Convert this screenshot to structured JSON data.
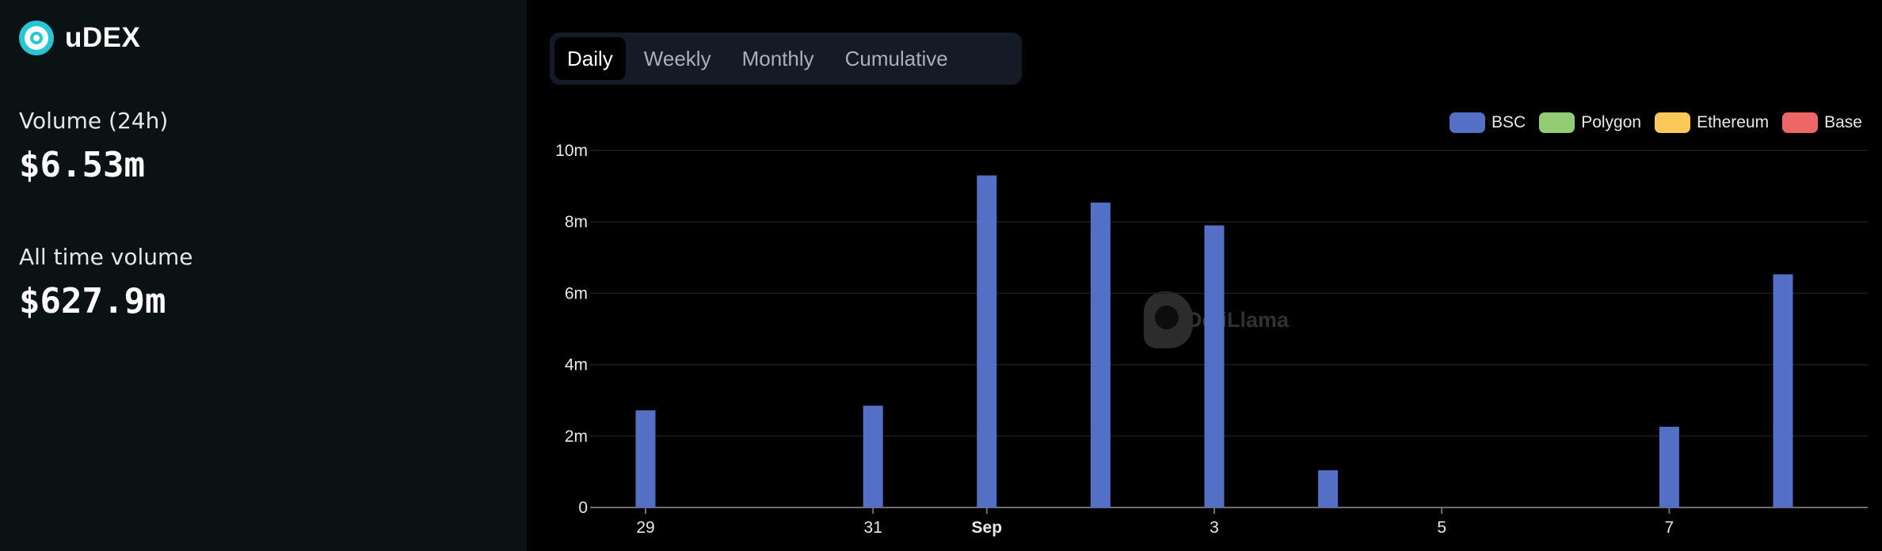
{
  "sidebar": {
    "protocol_name": "uDEX",
    "stats": [
      {
        "label": "Volume (24h)",
        "value": "$6.53m"
      },
      {
        "label": "All time volume",
        "value": "$627.9m"
      }
    ]
  },
  "tabs": [
    {
      "label": "Daily",
      "active": true
    },
    {
      "label": "Weekly",
      "active": false
    },
    {
      "label": "Monthly",
      "active": false
    },
    {
      "label": "Cumulative",
      "active": false
    }
  ],
  "watermark": "DefiLlama",
  "colors": {
    "BSC": "#5470c6",
    "Polygon": "#91cc75",
    "Ethereum": "#fac858",
    "Base": "#ee6666"
  },
  "chart_data": {
    "type": "bar",
    "stacked": true,
    "legend_position": "top-right",
    "grid": true,
    "x": [
      "Aug 29",
      "Aug 30",
      "Aug 31",
      "Sep 1",
      "Sep 2",
      "Sep 3",
      "Sep 4",
      "Sep 5",
      "Sep 6",
      "Sep 7",
      "Sep 8"
    ],
    "x_tick_labels": [
      {
        "index": 0,
        "label": "29"
      },
      {
        "index": 2,
        "label": "31"
      },
      {
        "index": 3,
        "label": "Sep",
        "bold": true
      },
      {
        "index": 5,
        "label": "3"
      },
      {
        "index": 7,
        "label": "5"
      },
      {
        "index": 9,
        "label": "7"
      }
    ],
    "ylim": [
      0,
      10000000
    ],
    "y_ticks": [
      {
        "value": 0,
        "label": "0"
      },
      {
        "value": 2000000,
        "label": "2m"
      },
      {
        "value": 4000000,
        "label": "4m"
      },
      {
        "value": 6000000,
        "label": "6m"
      },
      {
        "value": 8000000,
        "label": "8m"
      },
      {
        "value": 10000000,
        "label": "10m"
      }
    ],
    "series": [
      {
        "name": "BSC",
        "values": [
          2720000,
          0,
          2850000,
          9300000,
          8540000,
          7900000,
          1040000,
          0,
          0,
          2260000,
          6530000
        ]
      },
      {
        "name": "Polygon",
        "values": [
          0,
          0,
          0,
          0,
          0,
          0,
          0,
          0,
          0,
          0,
          0
        ]
      },
      {
        "name": "Ethereum",
        "values": [
          0,
          0,
          0,
          0,
          0,
          0,
          0,
          0,
          0,
          0,
          0
        ]
      },
      {
        "name": "Base",
        "values": [
          0,
          0,
          0,
          0,
          0,
          0,
          0,
          0,
          0,
          0,
          0
        ]
      }
    ]
  }
}
